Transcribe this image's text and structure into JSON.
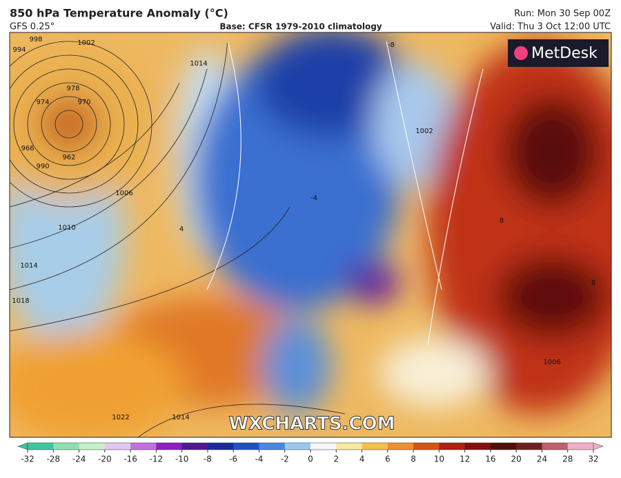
{
  "header": {
    "title": "850 hPa Temperature Anomaly (°C)",
    "model": "GFS 0.25°",
    "base": "Base: CFSR 1979-2010 climatology",
    "run": "Run: Mon 30 Sep 00Z",
    "valid": "Valid: Thu 3 Oct 12:00 UTC"
  },
  "logo": "MetDesk",
  "watermark": "WXCHARTS.COM",
  "map": {
    "contour_labels": [
      "994",
      "998",
      "1002",
      "1014",
      "978",
      "974",
      "970",
      "966",
      "962",
      "990",
      "1006",
      "1010",
      "1014",
      "1018",
      "1022",
      "1014",
      "-8",
      "-4",
      "8",
      "8",
      "4",
      "1002",
      "1006"
    ]
  },
  "colorbar": {
    "ticks": [
      -32,
      -28,
      -24,
      -20,
      -16,
      -12,
      -10,
      -8,
      -6,
      -4,
      -2,
      0,
      2,
      4,
      6,
      8,
      10,
      12,
      16,
      20,
      24,
      28,
      32
    ],
    "colors": [
      "#3fc6a0",
      "#8fe0b0",
      "#c8f0c8",
      "#e0c8f0",
      "#c070e0",
      "#9020c0",
      "#501890",
      "#1a2a9a",
      "#1f50c8",
      "#4a88e0",
      "#9cc8f0",
      "#f4f8fc",
      "#f8e8a0",
      "#f4c050",
      "#ec9030",
      "#d85018",
      "#b02010",
      "#801010",
      "#501008",
      "#702020",
      "#c06070",
      "#f0b0c8"
    ]
  }
}
